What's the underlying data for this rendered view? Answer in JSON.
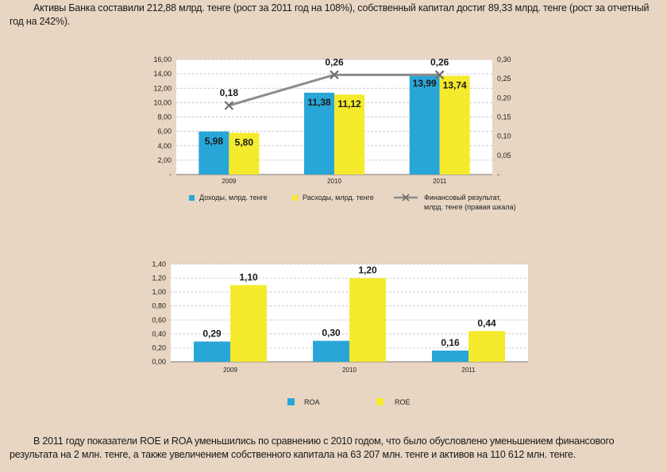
{
  "text": {
    "top_paragraph": "Активы Банка составили 212,88 млрд. тенге (рост за 2011 год на 108%), собственный капитал достиг 89,33 млрд. тенге (рост за отчетный год на 242%).",
    "bottom_paragraph": "В 2011 году показатели ROE и ROA уменьшились по сравнению с 2010 годом, что было обусловлено уменьшением финансового результата на 2 млн. тенге, а также увеличением собственного капитала на 63 207 млн. тенге и активов на 110 612 млн. тенге."
  },
  "colors": {
    "blue": "#29a6d8",
    "yellow": "#f5ea2c",
    "line": "#8c8c8c",
    "background": "#e8d6c2",
    "plot_background": "#ffffff"
  },
  "chart_data": [
    {
      "type": "bar",
      "categories": [
        "2009",
        "2010",
        "2011"
      ],
      "series": [
        {
          "name": "Доходы, млрд. тенге",
          "values": [
            5.98,
            11.38,
            13.99
          ],
          "labels": [
            "5,98",
            "11,38",
            "13,99"
          ],
          "color": "#29a6d8",
          "axis": "left"
        },
        {
          "name": "Расходы, млрд. тенге",
          "values": [
            5.8,
            11.12,
            13.74
          ],
          "labels": [
            "5,80",
            "11,12",
            "13,74"
          ],
          "color": "#f5ea2c",
          "axis": "left"
        },
        {
          "name": "Финансовый результат, млрд. тенге (правая шкала)",
          "type": "line",
          "values": [
            0.18,
            0.26,
            0.26
          ],
          "labels": [
            "0,18",
            "0,26",
            "0,26"
          ],
          "color": "#8c8c8c",
          "axis": "right"
        }
      ],
      "ylim": [
        0,
        16
      ],
      "y2lim": [
        0,
        0.3
      ],
      "yticks": [
        "-",
        "2,00",
        "4,00",
        "6,00",
        "8,00",
        "10,00",
        "12,00",
        "14,00",
        "16,00"
      ],
      "y2ticks": [
        "-",
        "0,05",
        "0,10",
        "0,15",
        "0,20",
        "0,25",
        "0,30"
      ],
      "grid": true,
      "legend": "bottom"
    },
    {
      "type": "bar",
      "categories": [
        "2009",
        "2010",
        "2011"
      ],
      "series": [
        {
          "name": "ROA",
          "values": [
            0.29,
            0.3,
            0.16
          ],
          "labels": [
            "0,29",
            "0,30",
            "0,16"
          ],
          "color": "#29a6d8"
        },
        {
          "name": "ROE",
          "values": [
            1.1,
            1.2,
            0.44
          ],
          "labels": [
            "1,10",
            "1,20",
            "0,44"
          ],
          "color": "#f5ea2c"
        }
      ],
      "ylim": [
        0,
        1.4
      ],
      "yticks": [
        "0,00",
        "0,20",
        "0,40",
        "0,60",
        "0,80",
        "1,00",
        "1,20",
        "1,40"
      ],
      "grid": true,
      "legend": "bottom"
    }
  ]
}
